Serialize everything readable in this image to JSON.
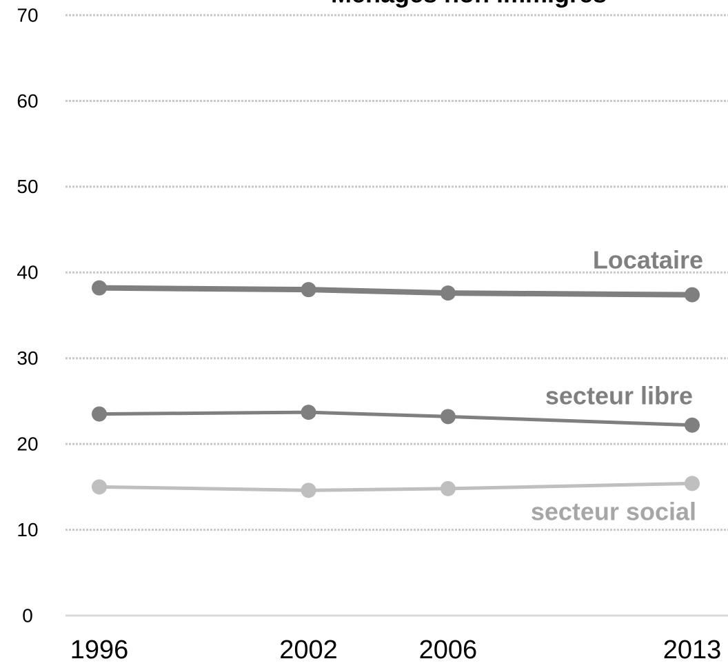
{
  "chart_data": {
    "type": "line",
    "title": "Ménages non immigrés",
    "x": [
      1996,
      2002,
      2006,
      2013
    ],
    "xlim": [
      1996,
      2013
    ],
    "xticks": [
      1996,
      2002,
      2006,
      2013
    ],
    "ylim": [
      0,
      70
    ],
    "yticks": [
      0,
      10,
      20,
      30,
      40,
      50,
      60,
      70
    ],
    "grid": true,
    "series": [
      {
        "name": "Locataire",
        "color": "#7f7f7f",
        "values": [
          38.2,
          38.0,
          37.6,
          37.4
        ]
      },
      {
        "name": "secteur libre",
        "color": "#7f7f7f",
        "values": [
          23.5,
          23.7,
          23.2,
          22.2
        ]
      },
      {
        "name": "secteur social",
        "color": "#bfbfbf",
        "values": [
          15.0,
          14.6,
          14.8,
          15.4
        ]
      }
    ]
  }
}
